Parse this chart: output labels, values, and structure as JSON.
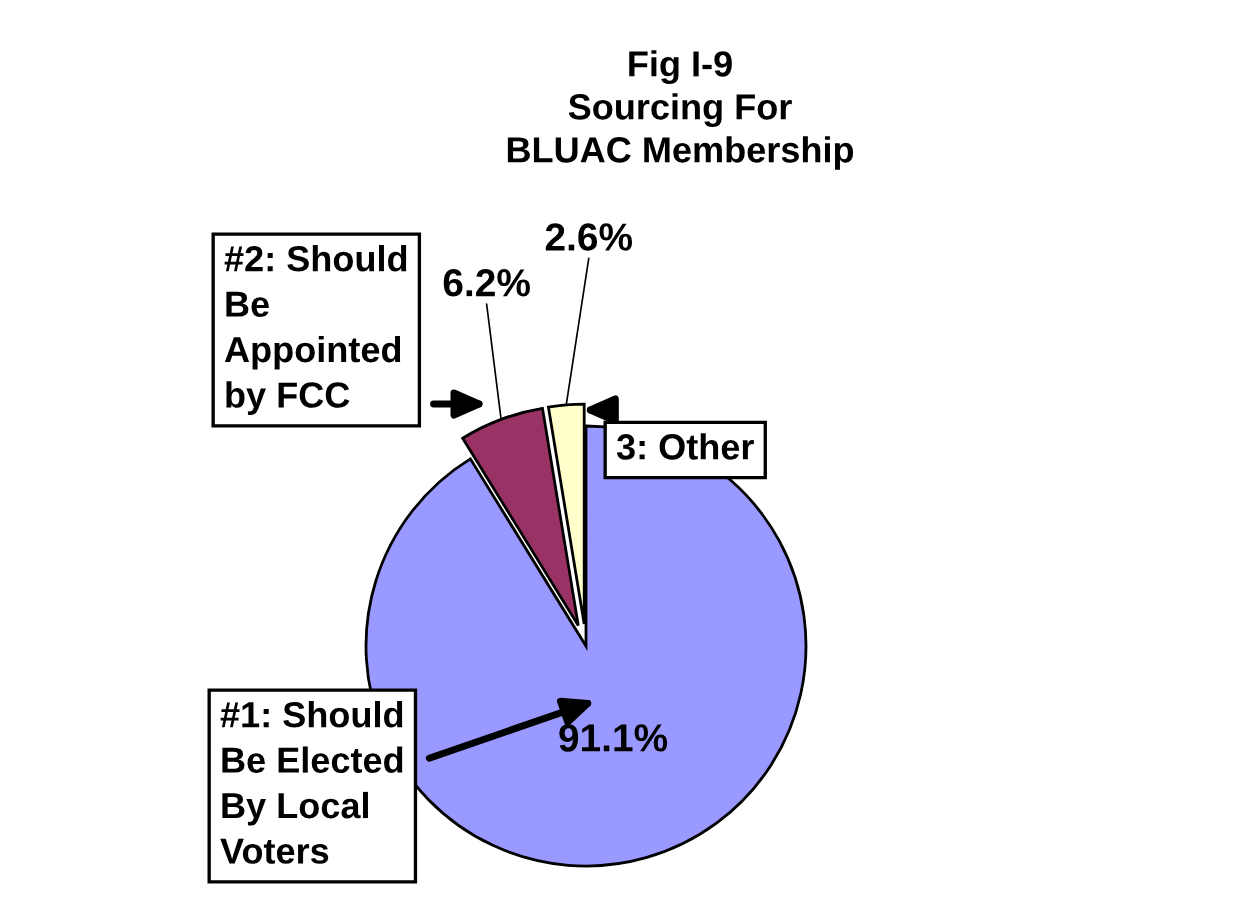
{
  "chart_data": {
    "type": "pie",
    "title": "Fig I-9\nSourcing For\nBLUAC Membership",
    "categories": [
      "#1: Should\nBe Elected\nBy Local\nVoters",
      "#2: Should\nBe\nAppointed\nby FCC",
      "3: Other"
    ],
    "values": [
      91.1,
      6.2,
      2.6
    ],
    "colors": [
      "#9999ff",
      "#993366",
      "#ffffcc"
    ],
    "value_labels": [
      "91.1%",
      "6.2%",
      "2.6%"
    ],
    "legend": false
  }
}
